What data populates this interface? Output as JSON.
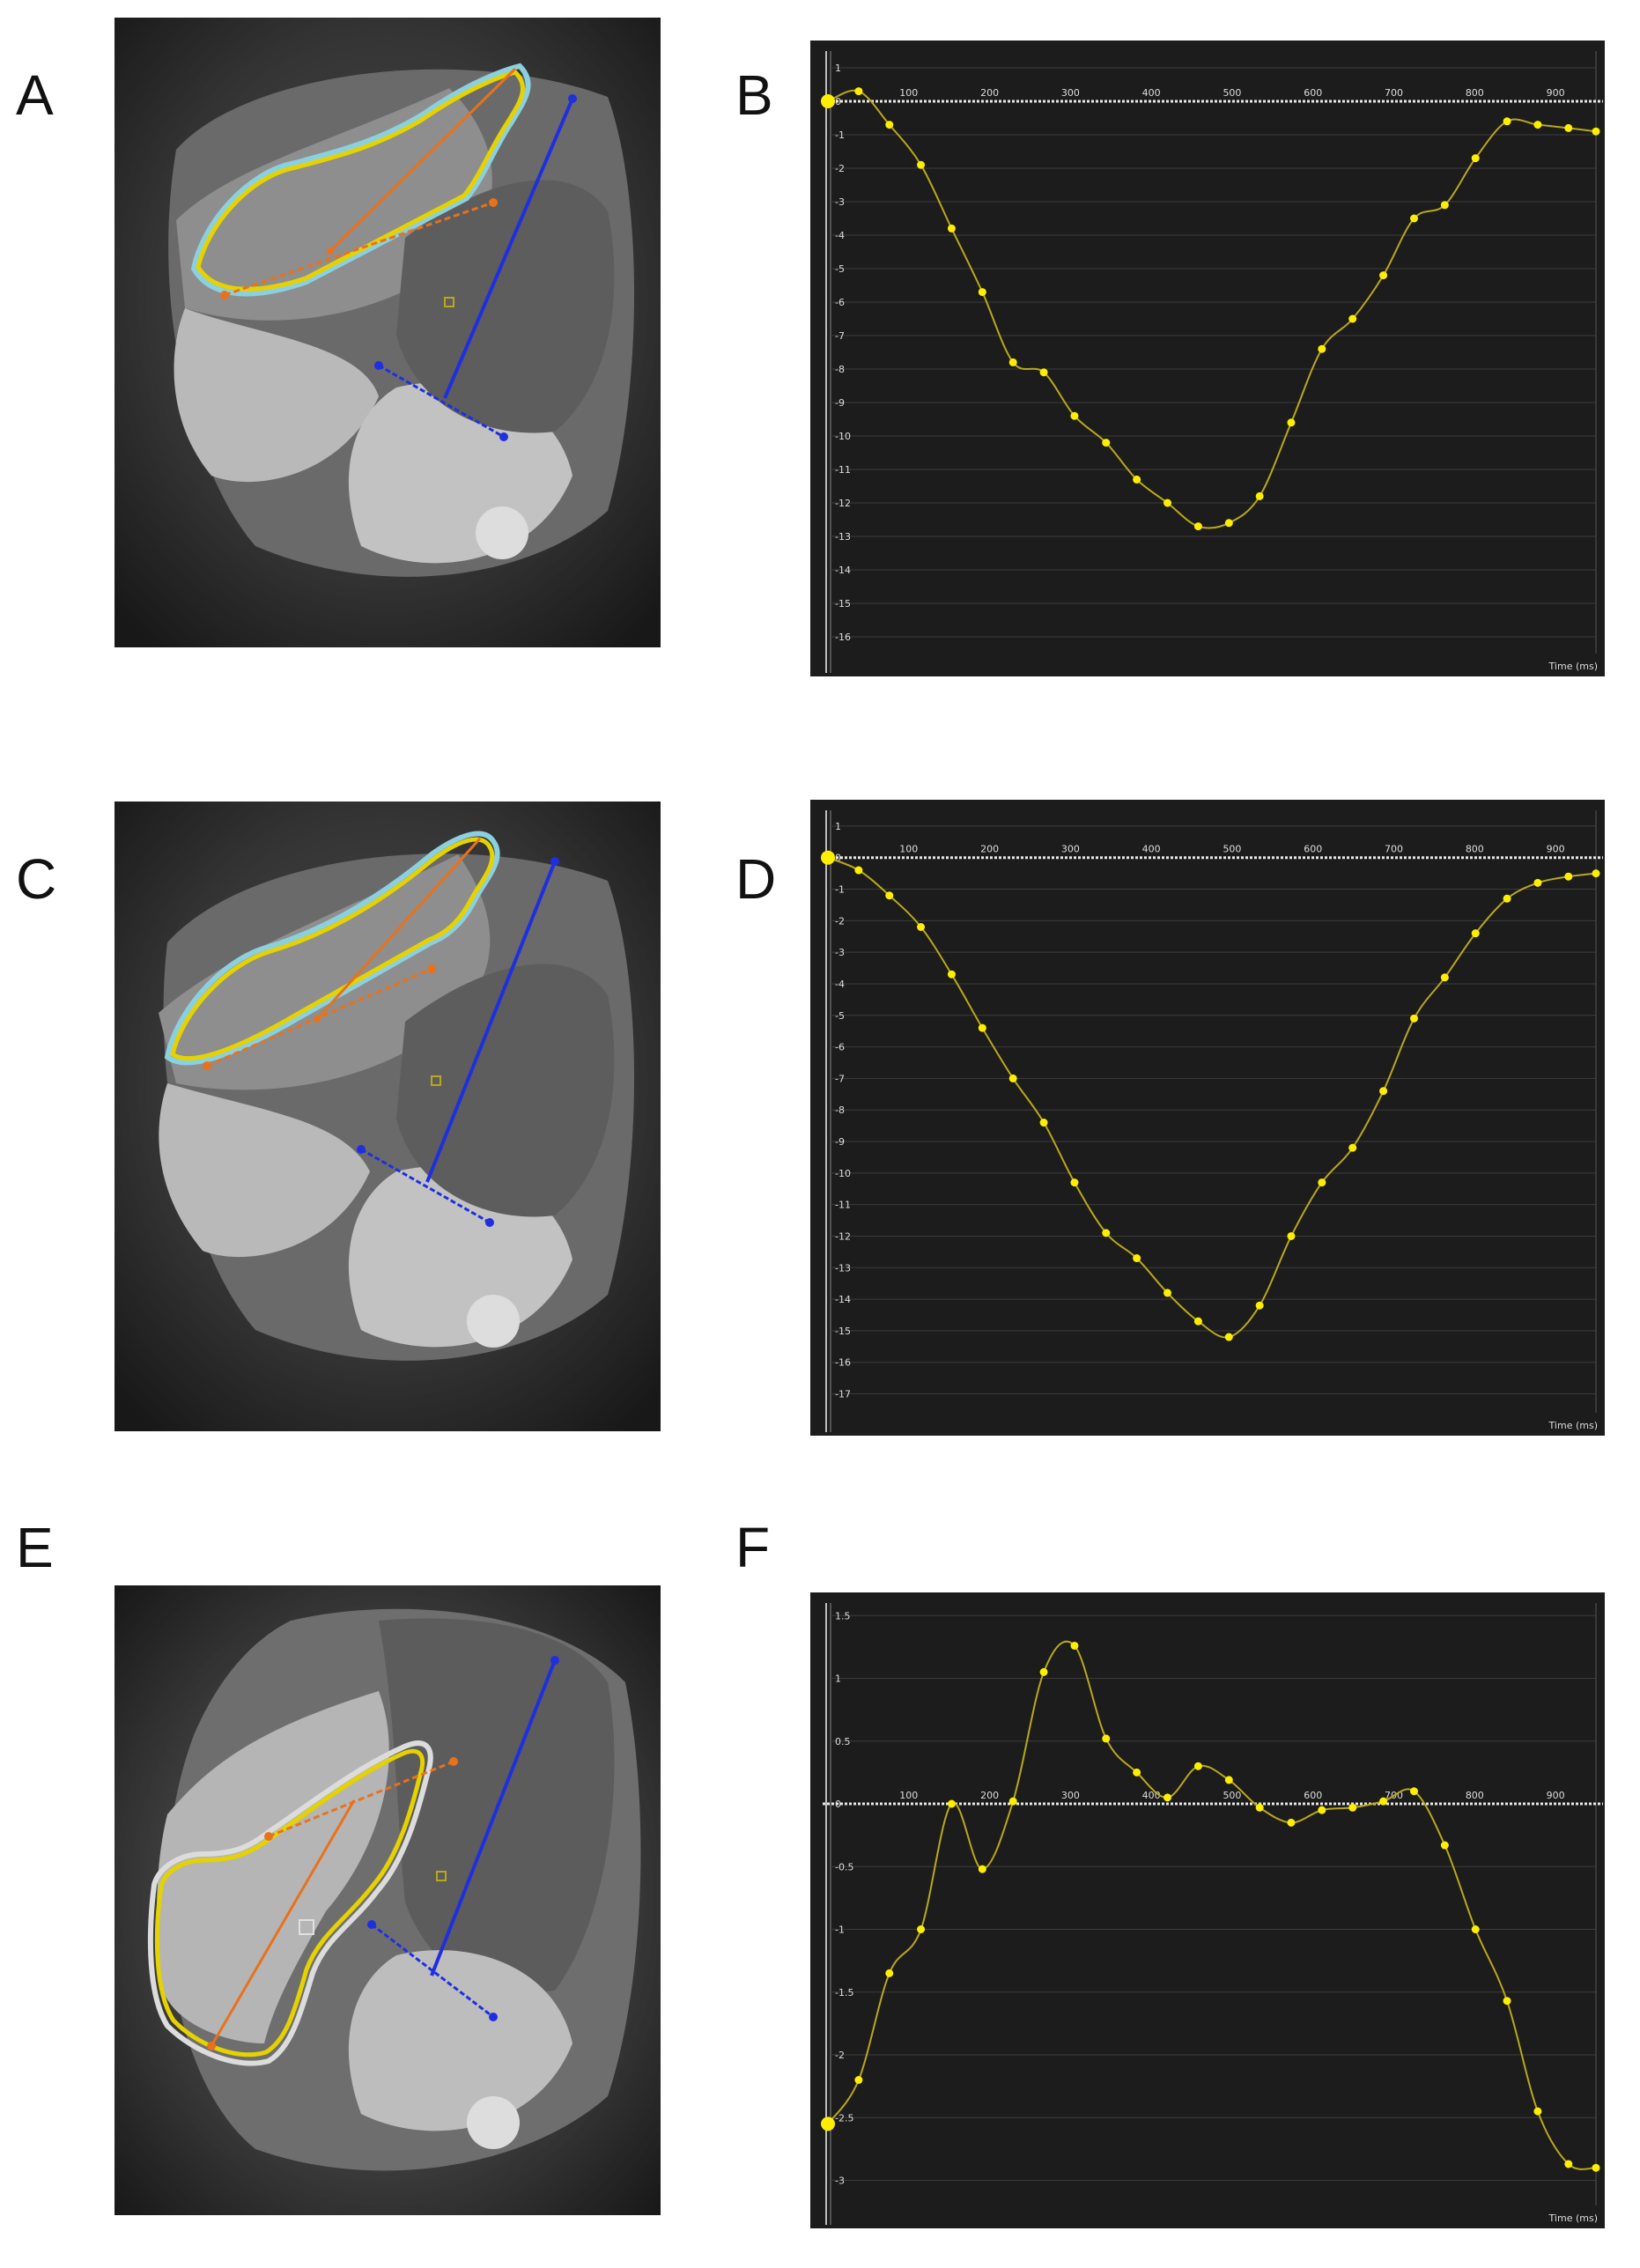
{
  "panel_labels": [
    "A",
    "B",
    "C",
    "D",
    "E",
    "F"
  ],
  "colors": {
    "chart_background": "#1c1c1c",
    "curve": "#b8a81c",
    "point": "#ffee00",
    "zero_line": "#e8e8e8",
    "grid": "#3c3c3c",
    "tick_text": "#dddddd",
    "contour_outer": "#8ad0e0",
    "contour_inner": "#e6d200",
    "axis_orange": "#e8721c",
    "axis_blue": "#1f2fe0"
  },
  "chart_data": [
    {
      "type": "line",
      "panel": "B",
      "xlabel": "Time (ms)",
      "ylabel": "",
      "x_ticks": [
        100,
        200,
        300,
        400,
        500,
        600,
        700,
        800,
        900
      ],
      "y_ticks": [
        1,
        0,
        -1,
        -2,
        -3,
        -4,
        -5,
        -6,
        -7,
        -8,
        -9,
        -10,
        -11,
        -12,
        -13,
        -14,
        -15,
        -16
      ],
      "xlim": [
        0,
        950
      ],
      "ylim": [
        -16.5,
        1.5
      ],
      "series": [
        {
          "x": [
            0,
            38,
            76,
            115,
            153,
            191,
            229,
            267,
            305,
            344,
            382,
            420,
            458,
            496,
            534,
            573,
            611,
            649,
            687,
            725,
            763,
            801,
            840,
            878,
            916,
            950
          ],
          "y": [
            0,
            0.3,
            -0.7,
            -1.9,
            -3.8,
            -5.7,
            -7.8,
            -8.1,
            -9.4,
            -10.2,
            -11.3,
            -12.0,
            -12.7,
            -12.6,
            -11.8,
            -9.6,
            -7.4,
            -6.5,
            -5.2,
            -3.5,
            -3.1,
            -1.7,
            -0.6,
            -0.7,
            -0.8,
            -0.9
          ]
        }
      ]
    },
    {
      "type": "line",
      "panel": "D",
      "xlabel": "Time (ms)",
      "ylabel": "",
      "x_ticks": [
        100,
        200,
        300,
        400,
        500,
        600,
        700,
        800,
        900
      ],
      "y_ticks": [
        1,
        0,
        -1,
        -2,
        -3,
        -4,
        -5,
        -6,
        -7,
        -8,
        -9,
        -10,
        -11,
        -12,
        -13,
        -14,
        -15,
        -16,
        -17
      ],
      "xlim": [
        0,
        950
      ],
      "ylim": [
        -17.6,
        1.5
      ],
      "series": [
        {
          "x": [
            0,
            38,
            76,
            115,
            153,
            191,
            229,
            267,
            305,
            344,
            382,
            420,
            458,
            496,
            534,
            573,
            611,
            649,
            687,
            725,
            763,
            801,
            840,
            878,
            916,
            950
          ],
          "y": [
            0,
            -0.4,
            -1.2,
            -2.2,
            -3.7,
            -5.4,
            -7.0,
            -8.4,
            -10.3,
            -11.9,
            -12.7,
            -13.8,
            -14.7,
            -15.2,
            -14.2,
            -12.0,
            -10.3,
            -9.2,
            -7.4,
            -5.1,
            -3.8,
            -2.4,
            -1.3,
            -0.8,
            -0.6,
            -0.5
          ]
        }
      ]
    },
    {
      "type": "line",
      "panel": "F",
      "xlabel": "Time (ms)",
      "ylabel": "",
      "x_ticks": [
        100,
        200,
        300,
        400,
        500,
        600,
        700,
        800,
        900
      ],
      "y_ticks": [
        1.5,
        1,
        0.5,
        0,
        -0.5,
        -1,
        -1.5,
        -2,
        -2.5,
        -3
      ],
      "xlim": [
        0,
        950
      ],
      "ylim": [
        -3.2,
        1.6
      ],
      "series": [
        {
          "x": [
            0,
            38,
            76,
            115,
            153,
            191,
            229,
            267,
            305,
            344,
            382,
            420,
            458,
            496,
            534,
            573,
            611,
            649,
            687,
            725,
            763,
            801,
            840,
            878,
            916,
            950
          ],
          "y": [
            -2.55,
            -2.2,
            -1.35,
            -1.0,
            0.0,
            -0.52,
            0.02,
            1.05,
            1.26,
            0.52,
            0.25,
            0.05,
            0.3,
            0.19,
            -0.03,
            -0.15,
            -0.05,
            -0.03,
            0.02,
            0.1,
            -0.33,
            -1.0,
            -1.57,
            -2.45,
            -2.87,
            -2.9
          ]
        }
      ]
    }
  ]
}
